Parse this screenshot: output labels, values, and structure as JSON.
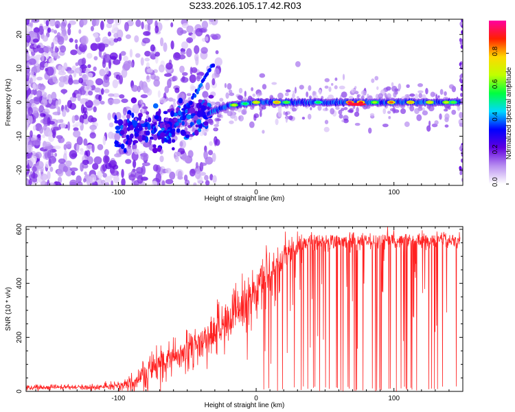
{
  "title": "S233.2026.105.17.42.R03",
  "chart_data": [
    {
      "type": "heatmap",
      "title": "S233.2026.105.17.42.R03",
      "xlabel": "Height of straight line (km)",
      "ylabel": "Frequency (Hz)",
      "xlim": [
        -167,
        150
      ],
      "ylim": [
        -24.5,
        24.5
      ],
      "xticks": [
        -100,
        0,
        100
      ],
      "xtick_labels": [
        "-100",
        "0",
        "100"
      ],
      "yticks": [
        -20,
        -10,
        0,
        10,
        20
      ],
      "ytick_labels": [
        "-20",
        "-10",
        "0",
        "10",
        "20"
      ],
      "colorbar": {
        "label": "Normalized spectral amplitude",
        "range": [
          0,
          1
        ],
        "ticks": [
          0.0,
          0.2,
          0.4,
          0.6,
          0.8
        ],
        "tick_labels": [
          "0.0",
          "0.2",
          "0.4",
          "0.6",
          "0.8"
        ],
        "colormap": [
          "#ffffff",
          "#b88ef0",
          "#6000e0",
          "#0000ff",
          "#00d8ff",
          "#00ff40",
          "#c0ff00",
          "#ffd800",
          "#ff2000",
          "#ff00a0"
        ]
      },
      "ridge": {
        "description_points": [
          {
            "x": -100,
            "freq": -7
          },
          {
            "x": -80,
            "freq": -5
          },
          {
            "x": -60,
            "freq": -6
          },
          {
            "x": -40,
            "freq": -4
          },
          {
            "x": -20,
            "freq": -1
          },
          {
            "x": 0,
            "freq": 0
          },
          {
            "x": 50,
            "freq": 0
          },
          {
            "x": 100,
            "freq": 0
          },
          {
            "x": 145,
            "freq": 0
          }
        ]
      }
    },
    {
      "type": "line",
      "xlabel": "Height of straight line (km)",
      "ylabel": "SNR (10 * v/v)",
      "xlim": [
        -167,
        150
      ],
      "ylim": [
        0,
        610
      ],
      "xticks": [
        -100,
        0,
        100
      ],
      "xtick_labels": [
        "-100",
        "0",
        "100"
      ],
      "yticks": [
        0,
        200,
        400,
        600
      ],
      "ytick_labels": [
        "0",
        "200",
        "400",
        "600"
      ],
      "line_color": "#ff2020",
      "series": [
        {
          "name": "SNR",
          "envelope_x": [
            -167,
            -120,
            -100,
            -90,
            -80,
            -70,
            -60,
            -50,
            -40,
            -30,
            -20,
            -10,
            0,
            10,
            20,
            30,
            40,
            50,
            60,
            70,
            80,
            90,
            100,
            110,
            120,
            130,
            140,
            148
          ],
          "envelope_mean": [
            15,
            15,
            18,
            30,
            60,
            110,
            130,
            150,
            180,
            220,
            260,
            320,
            380,
            440,
            500,
            540,
            550,
            555,
            560,
            560,
            555,
            560,
            560,
            555,
            560,
            555,
            560,
            560
          ],
          "envelope_peak": [
            30,
            30,
            40,
            80,
            150,
            260,
            220,
            260,
            300,
            350,
            400,
            450,
            520,
            560,
            590,
            600,
            600,
            605,
            605,
            610,
            600,
            605,
            605,
            600,
            600,
            600,
            600,
            610
          ]
        }
      ]
    }
  ]
}
